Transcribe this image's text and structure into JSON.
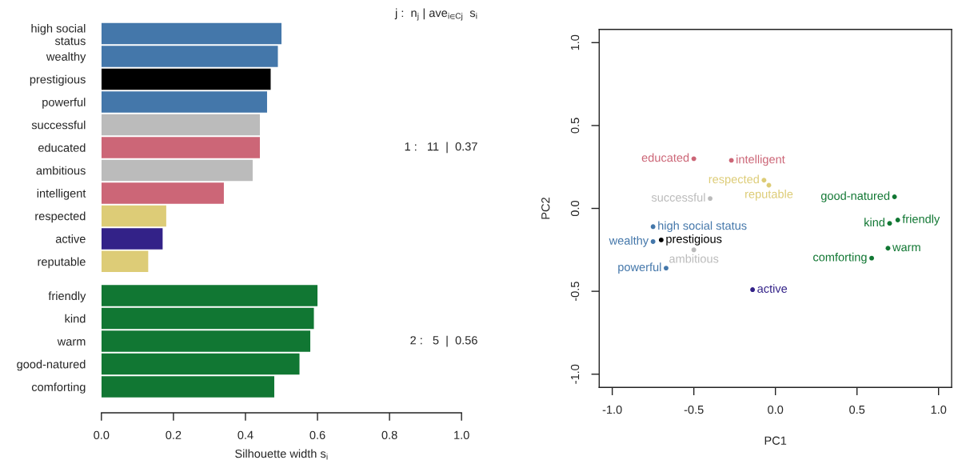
{
  "chart_data": [
    {
      "type": "bar",
      "orientation": "horizontal",
      "categories": [
        "high social\nstatus",
        "wealthy",
        "prestigious",
        "powerful",
        "successful",
        "educated",
        "ambitious",
        "intelligent",
        "respected",
        "active",
        "reputable",
        "friendly",
        "kind",
        "warm",
        "good-natured",
        "comforting"
      ],
      "series": [
        {
          "values": [
            0.5,
            0.49,
            0.47,
            0.46,
            0.44,
            0.44,
            0.42,
            0.34,
            0.18,
            0.17,
            0.13,
            null,
            null,
            null,
            null,
            null
          ],
          "colors": [
            "#4477aa",
            "#4477aa",
            "#000000",
            "#4477aa",
            "#bbbbbb",
            "#cc6677",
            "#bbbbbb",
            "#cc6677",
            "#ddcc77",
            "#332288",
            "#ddcc77",
            null,
            null,
            null,
            null,
            null
          ]
        },
        {
          "values": [
            null,
            null,
            null,
            null,
            null,
            null,
            null,
            null,
            null,
            null,
            null,
            0.6,
            0.59,
            0.58,
            0.55,
            0.48
          ],
          "colors": [
            null,
            null,
            null,
            null,
            null,
            null,
            null,
            null,
            null,
            null,
            null,
            "#117733",
            "#117733",
            "#117733",
            "#117733",
            "#117733"
          ]
        }
      ],
      "xlabel": "Silhouette width s$_{i}$",
      "xlim": [
        0,
        1
      ],
      "xticks": [
        {
          "value": 0,
          "label": "0.0"
        },
        0.2,
        0.4,
        0.6,
        0.8,
        {
          "value": 1,
          "label": "1.0"
        }
      ],
      "annotations": [
        "j :  n$_{j}$ | ave$_{i∈Cj}$  s$_{i}$",
        "1 :   11  |  0.37",
        "2 :   5  |  0.56"
      ]
    },
    {
      "type": "scatter",
      "marker": "circle",
      "series": [
        {
          "name": "high social status",
          "color": "#4477aa",
          "x": [
            -0.75
          ],
          "values": [
            -0.11
          ]
        },
        {
          "name": "wealthy",
          "color": "#4477aa",
          "x": [
            -0.75
          ],
          "values": [
            -0.2
          ]
        },
        {
          "name": "prestigious",
          "color": "#000000",
          "x": [
            -0.7
          ],
          "values": [
            -0.19
          ]
        },
        {
          "name": "powerful",
          "color": "#4477aa",
          "x": [
            -0.67
          ],
          "values": [
            -0.36
          ]
        },
        {
          "name": "successful",
          "color": "#bbbbbb",
          "x": [
            -0.4
          ],
          "values": [
            0.06
          ]
        },
        {
          "name": "educated",
          "color": "#cc6677",
          "x": [
            -0.5
          ],
          "values": [
            0.3
          ]
        },
        {
          "name": "ambitious",
          "color": "#bbbbbb",
          "x": [
            -0.5
          ],
          "values": [
            -0.25
          ]
        },
        {
          "name": "intelligent",
          "color": "#cc6677",
          "x": [
            -0.27
          ],
          "values": [
            0.29
          ]
        },
        {
          "name": "respected",
          "color": "#ddcc77",
          "x": [
            -0.07
          ],
          "values": [
            0.17
          ]
        },
        {
          "name": "active",
          "color": "#332288",
          "x": [
            -0.14
          ],
          "values": [
            -0.49
          ]
        },
        {
          "name": "reputable",
          "color": "#ddcc77",
          "x": [
            -0.04
          ],
          "values": [
            0.14
          ]
        },
        {
          "name": "friendly",
          "color": "#117733",
          "x": [
            0.75
          ],
          "values": [
            -0.07
          ]
        },
        {
          "name": "kind",
          "color": "#117733",
          "x": [
            0.7
          ],
          "values": [
            -0.09
          ]
        },
        {
          "name": "warm",
          "color": "#117733",
          "x": [
            0.69
          ],
          "values": [
            -0.24
          ]
        },
        {
          "name": "good-natured",
          "color": "#117733",
          "x": [
            0.73
          ],
          "values": [
            0.07
          ]
        },
        {
          "name": "comforting",
          "color": "#117733",
          "x": [
            0.59
          ],
          "values": [
            -0.3
          ]
        }
      ],
      "xlabel": "PC1",
      "ylabel": "PC2",
      "xlim": [
        -1.08,
        1.08
      ],
      "ylim": [
        -1.08,
        1.08
      ],
      "xticks": [
        {
          "value": -1,
          "label": "-1.0"
        },
        -0.5,
        {
          "value": 0,
          "label": "0.0"
        },
        0.5,
        {
          "value": 1,
          "label": "1.0"
        }
      ],
      "yticks": [
        {
          "value": -1,
          "label": "-1.0"
        },
        -0.5,
        {
          "value": 0,
          "label": "0.0"
        },
        0.5,
        {
          "value": 1,
          "label": "1.0"
        }
      ]
    }
  ]
}
